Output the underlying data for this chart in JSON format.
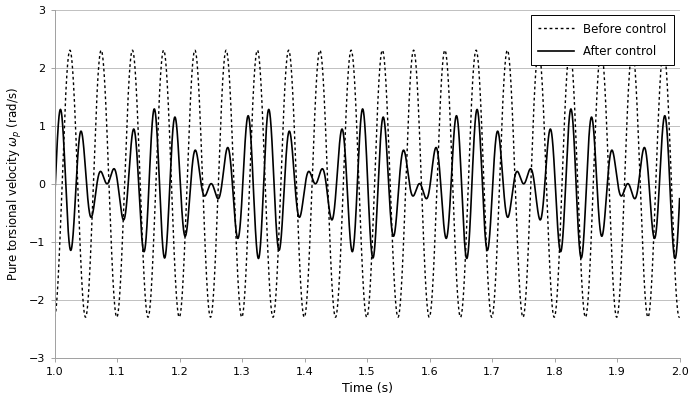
{
  "title": "",
  "xlabel": "Time (s)",
  "ylabel": "Pure torsional velocity $\\omega_p$ (rad/s)",
  "xlim": [
    1.0,
    2.0
  ],
  "ylim": [
    -3,
    3
  ],
  "xticks": [
    1.0,
    1.1,
    1.2,
    1.3,
    1.4,
    1.5,
    1.6,
    1.7,
    1.8,
    1.9,
    2.0
  ],
  "yticks": [
    -3,
    -2,
    -1,
    0,
    1,
    2,
    3
  ],
  "legend_before": "Before control",
  "legend_after": "After control",
  "before_color": "#000000",
  "after_color": "#000000",
  "background_color": "#ffffff",
  "grid_color": "#c0c0c0",
  "figsize": [
    6.94,
    4.01
  ],
  "dpi": 100,
  "before_freq": 20.0,
  "before_amp": 2.3,
  "after_freq1": 25.0,
  "after_freq2": 30.0,
  "after_amp": 1.0
}
